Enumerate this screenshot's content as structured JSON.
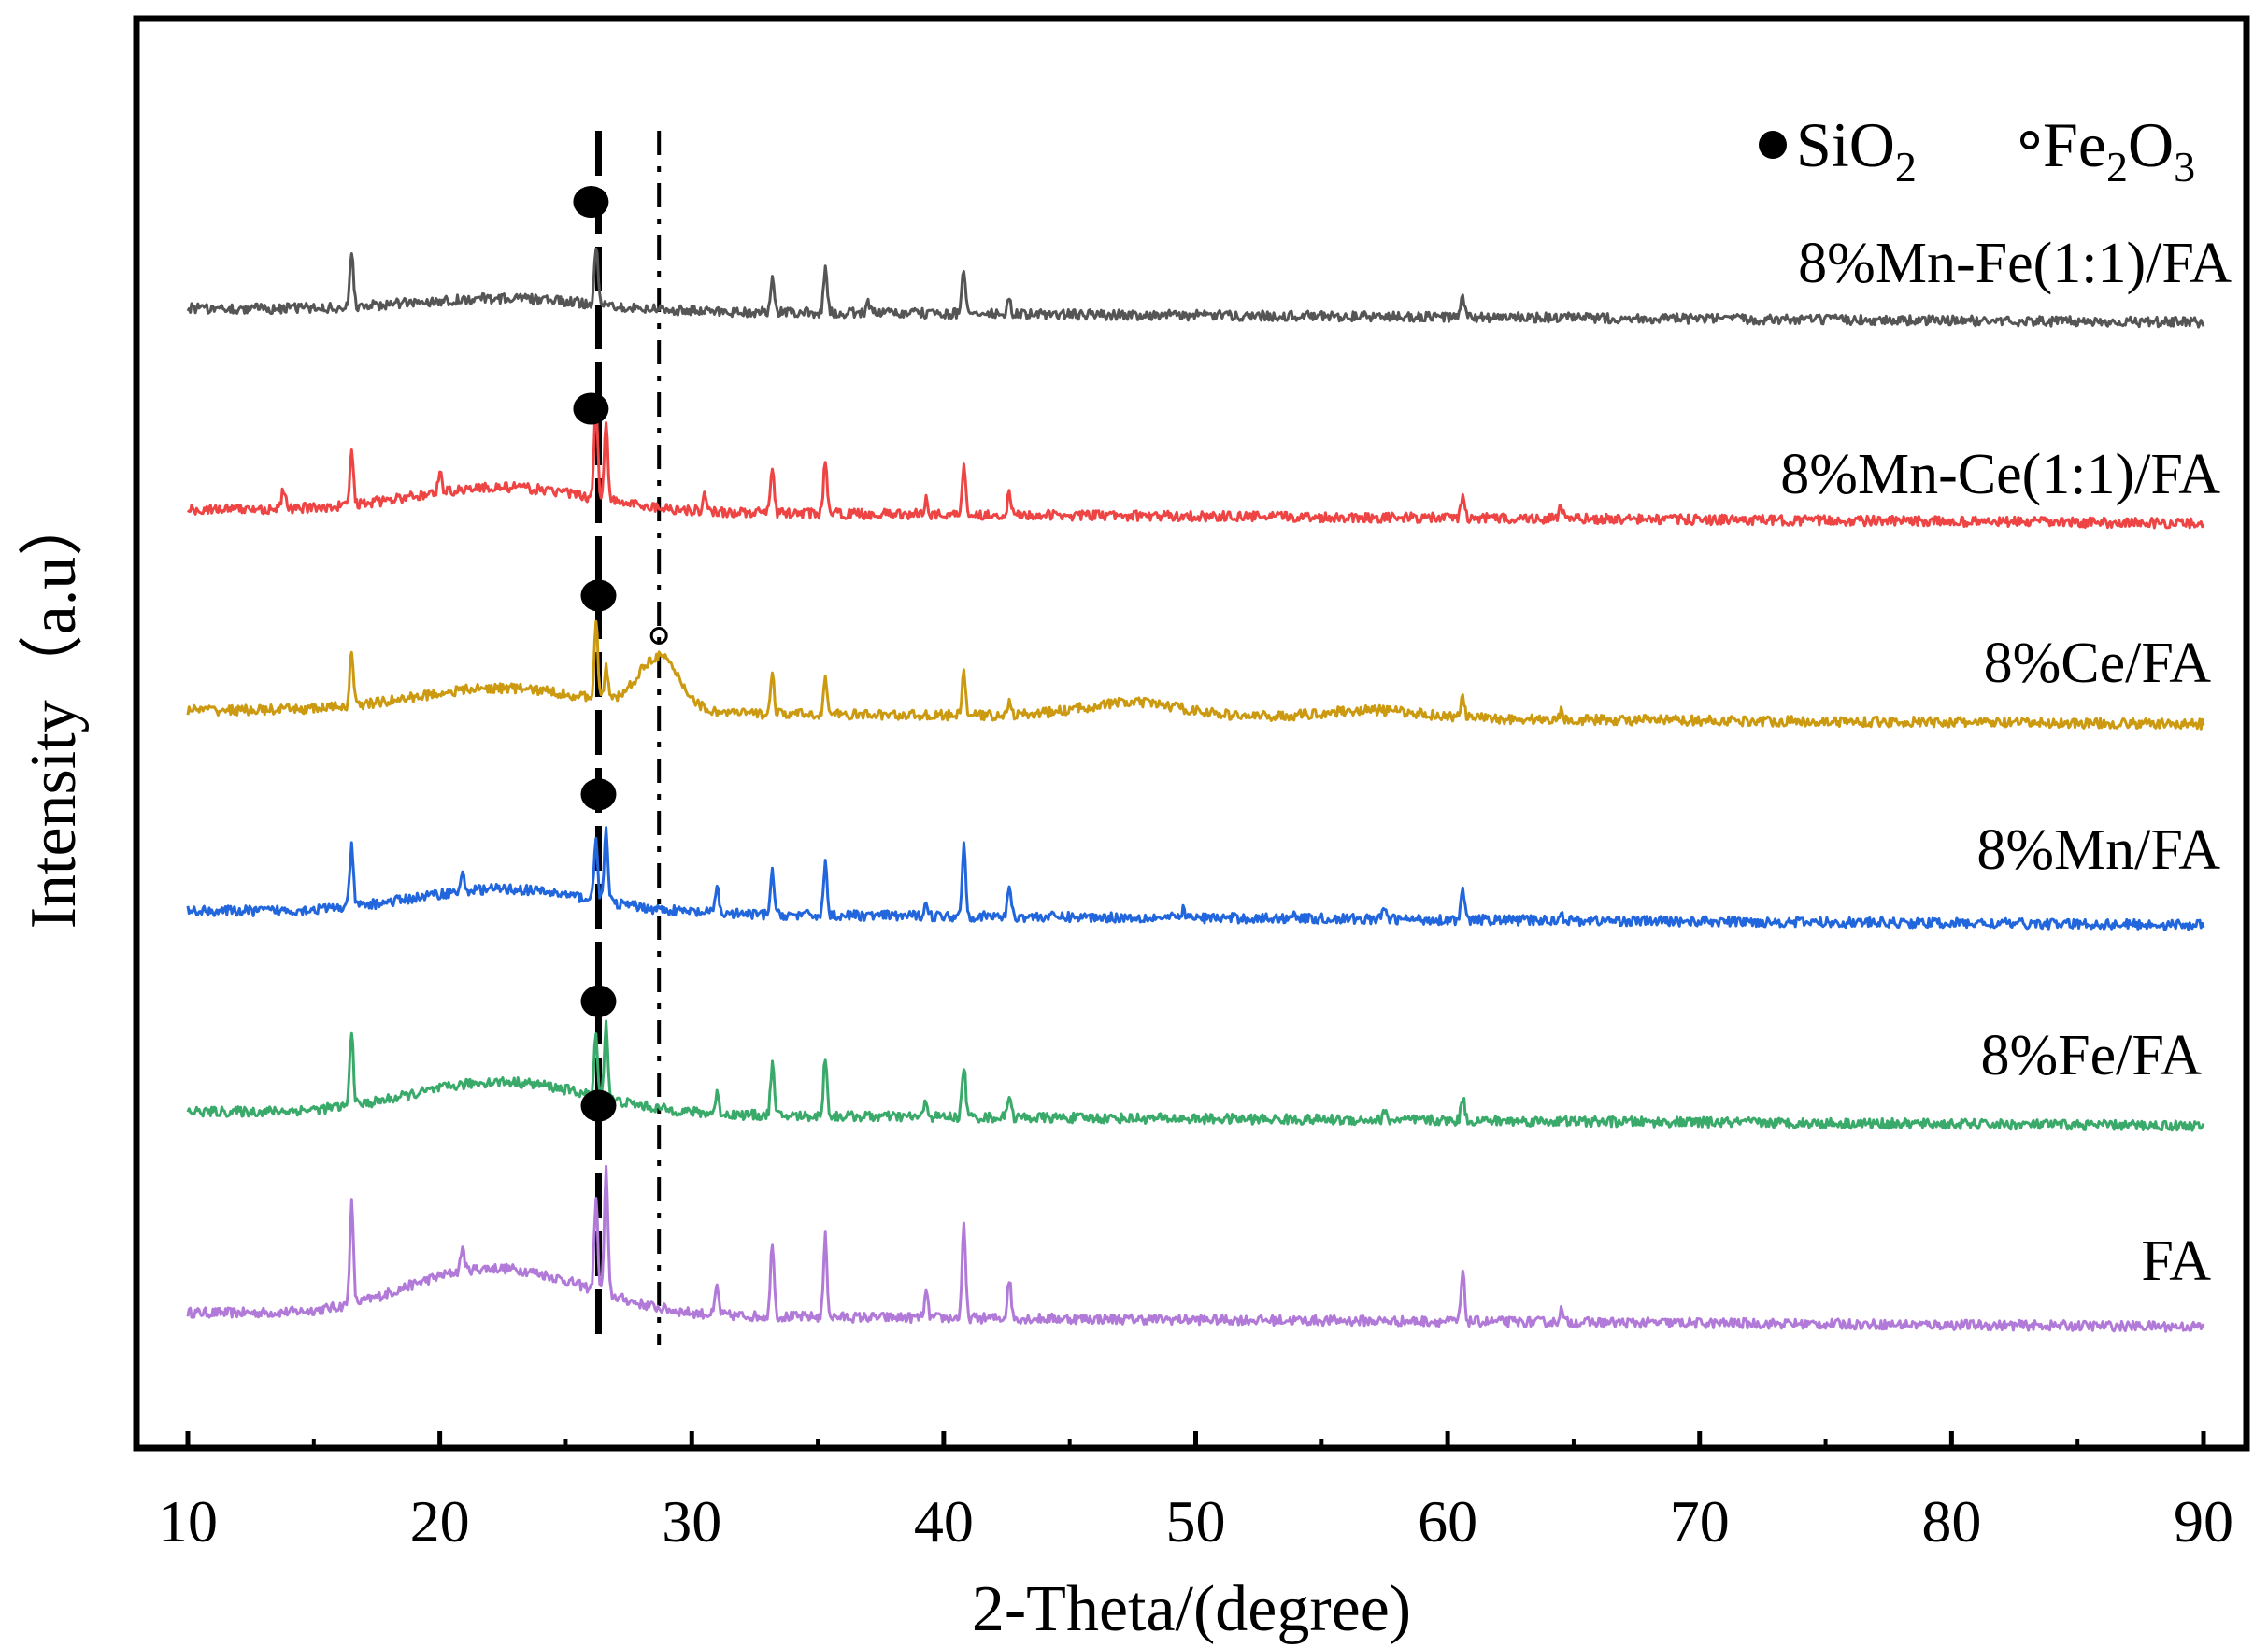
{
  "chart_data": {
    "type": "line",
    "title": "",
    "xlabel": "2-Theta/(degree)",
    "ylabel": "Intensity（a.u）",
    "xlim": [
      10,
      90
    ],
    "xticks": [
      10,
      20,
      30,
      40,
      50,
      60,
      70,
      80,
      90
    ],
    "yticks": [],
    "legend": {
      "position": "top-right",
      "items": [
        {
          "marker": "filled-circle",
          "base": "SiO",
          "sub": "2"
        },
        {
          "marker": "open-circle",
          "base": "Fe",
          "sub1": "2",
          "mid": "O",
          "sub2": "3"
        }
      ]
    },
    "reference_lines": [
      {
        "name": "SiO2",
        "x": 26.3,
        "style": "dashed"
      },
      {
        "name": "Fe2O3",
        "x": 28.7,
        "style": "dash-dot"
      }
    ],
    "series": [
      {
        "name": "FA",
        "color": "#b27ad8",
        "baseline": 0,
        "amorphous": [
          [
            20,
            0.1,
            2.5
          ],
          [
            23.5,
            0.18,
            3.0
          ]
        ],
        "peaks": [
          [
            16.5,
            0.5
          ],
          [
            20.9,
            0.12
          ],
          [
            26.6,
            0.62
          ],
          [
            26.2,
            0.45
          ],
          [
            31.0,
            0.14
          ],
          [
            33.2,
            0.38
          ],
          [
            35.3,
            0.4
          ],
          [
            39.3,
            0.12
          ],
          [
            40.8,
            0.45
          ],
          [
            42.6,
            0.2
          ],
          [
            60.6,
            0.24
          ],
          [
            64.5,
            0.06
          ]
        ],
        "markers": [
          {
            "type": "SiO2",
            "x": 26.3,
            "y": 1.03
          }
        ]
      },
      {
        "name": "8%Fe/FA",
        "color": "#3aaa6a",
        "baseline": 1,
        "amorphous": [
          [
            22.5,
            0.16,
            3.5
          ]
        ],
        "peaks": [
          [
            16.5,
            0.38
          ],
          [
            26.6,
            0.38
          ],
          [
            26.2,
            0.3
          ],
          [
            31.0,
            0.1
          ],
          [
            33.2,
            0.26
          ],
          [
            35.3,
            0.3
          ],
          [
            39.3,
            0.08
          ],
          [
            40.8,
            0.26
          ],
          [
            42.6,
            0.12
          ],
          [
            57.5,
            0.04
          ],
          [
            60.6,
            0.12
          ]
        ],
        "markers": [
          {
            "type": "SiO2",
            "x": 26.3,
            "y": 1.55
          }
        ]
      },
      {
        "name": "8%Mn/FA",
        "color": "#2266dd",
        "baseline": 2,
        "amorphous": [
          [
            22.5,
            0.12,
            3.5
          ]
        ],
        "peaks": [
          [
            16.5,
            0.3
          ],
          [
            20.9,
            0.08
          ],
          [
            26.6,
            0.36
          ],
          [
            26.2,
            0.32
          ],
          [
            31.0,
            0.14
          ],
          [
            33.2,
            0.22
          ],
          [
            35.3,
            0.26
          ],
          [
            39.3,
            0.08
          ],
          [
            40.8,
            0.36
          ],
          [
            42.6,
            0.16
          ],
          [
            49.5,
            0.04
          ],
          [
            53.9,
            0.04
          ],
          [
            57.5,
            0.06
          ],
          [
            60.6,
            0.14
          ],
          [
            64.5,
            0.04
          ]
        ],
        "markers": [
          {
            "type": "SiO2",
            "x": 26.3,
            "y": 2.58
          }
        ]
      },
      {
        "name": "8%Ce/FA",
        "color": "#cc9a10",
        "baseline": 3,
        "amorphous": [
          [
            22.5,
            0.12,
            3.5
          ],
          [
            28.7,
            0.26,
            0.8
          ],
          [
            47.5,
            0.07,
            2.0
          ],
          [
            57.0,
            0.04,
            2.0
          ]
        ],
        "peaks": [
          [
            16.5,
            0.28
          ],
          [
            26.2,
            0.4
          ],
          [
            26.6,
            0.16
          ],
          [
            33.2,
            0.2
          ],
          [
            35.3,
            0.18
          ],
          [
            40.8,
            0.22
          ],
          [
            42.6,
            0.06
          ],
          [
            60.6,
            0.1
          ],
          [
            64.5,
            0.04
          ]
        ],
        "markers": [
          {
            "type": "SiO2",
            "x": 26.3,
            "y": 3.57
          },
          {
            "type": "Fe2O3",
            "x": 28.7,
            "y": 3.37
          }
        ]
      },
      {
        "name": "8%Mn-Ce(1:1)/FA",
        "color": "#ee4444",
        "baseline": 4,
        "amorphous": [
          [
            22.5,
            0.12,
            3.5
          ]
        ],
        "peaks": [
          [
            13.8,
            0.1
          ],
          [
            16.5,
            0.26
          ],
          [
            20.0,
            0.1
          ],
          [
            26.2,
            0.48
          ],
          [
            26.6,
            0.4
          ],
          [
            30.5,
            0.08
          ],
          [
            33.2,
            0.22
          ],
          [
            35.3,
            0.28
          ],
          [
            39.3,
            0.08
          ],
          [
            40.8,
            0.26
          ],
          [
            42.6,
            0.1
          ],
          [
            60.6,
            0.12
          ],
          [
            64.5,
            0.06
          ]
        ],
        "markers": [
          {
            "type": "SiO2",
            "x": 26.0,
            "y": 4.5
          }
        ]
      },
      {
        "name": "8%Mn-Fe(1:1)/FA",
        "color": "#555555",
        "baseline": 5,
        "amorphous": [
          [
            22.5,
            0.06,
            3.5
          ]
        ],
        "peaks": [
          [
            16.5,
            0.26
          ],
          [
            26.2,
            0.3
          ],
          [
            33.2,
            0.16
          ],
          [
            35.3,
            0.22
          ],
          [
            37.0,
            0.06
          ],
          [
            40.8,
            0.22
          ],
          [
            42.6,
            0.06
          ],
          [
            60.6,
            0.1
          ]
        ],
        "markers": [
          {
            "type": "SiO2",
            "x": 26.0,
            "y": 5.53
          }
        ]
      }
    ]
  }
}
